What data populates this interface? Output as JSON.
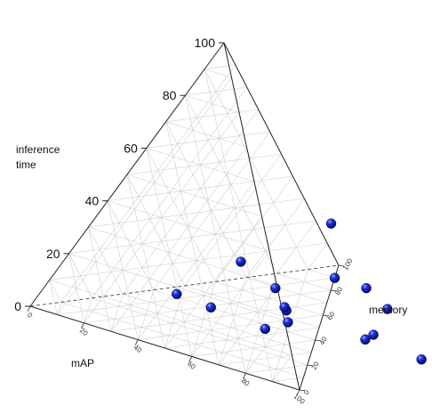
{
  "chart_data": {
    "type": "scatter",
    "title": "",
    "axes": {
      "vertical": {
        "label_line1": "inference",
        "label_line2": "time",
        "ticks": [
          "0",
          "20",
          "40",
          "60",
          "80",
          "100"
        ],
        "range": [
          0,
          100
        ]
      },
      "left": {
        "label": "mAP",
        "ticks": [
          "0",
          "20",
          "40",
          "60",
          "80",
          "100"
        ],
        "range": [
          0,
          100
        ]
      },
      "right": {
        "label": "memory",
        "ticks": [
          "0",
          "20",
          "40",
          "60",
          "80",
          "100"
        ],
        "range": [
          0,
          100
        ]
      }
    },
    "grid": true,
    "points": [
      {
        "mAP": 58,
        "memory": 47,
        "time": 18
      },
      {
        "mAP": 12,
        "memory": 72,
        "time": 24
      },
      {
        "mAP": 10,
        "memory": 52,
        "time": 12
      },
      {
        "mAP": 18,
        "memory": 28,
        "time": 6
      },
      {
        "mAP": 33,
        "memory": 26,
        "time": 6
      },
      {
        "mAP": 28,
        "memory": 50,
        "time": 8
      },
      {
        "mAP": 52,
        "memory": 35,
        "time": 5
      },
      {
        "mAP": 55,
        "memory": 25,
        "time": 5
      },
      {
        "mAP": 75,
        "memory": 40,
        "time": 5
      },
      {
        "mAP": 38,
        "memory": 48,
        "time": 3
      },
      {
        "mAP": 68,
        "memory": 50,
        "time": 3
      },
      {
        "mAP": 35,
        "memory": 50,
        "time": 3
      },
      {
        "mAP": 48,
        "memory": 72,
        "time": 3
      },
      {
        "mAP": 88,
        "memory": 50,
        "time": 0
      },
      {
        "mAP": 72,
        "memory": 72,
        "time": 3
      },
      {
        "mAP": 42,
        "memory": 52,
        "time": 16
      },
      {
        "mAP": 82,
        "memory": 72,
        "time": 0
      }
    ]
  }
}
